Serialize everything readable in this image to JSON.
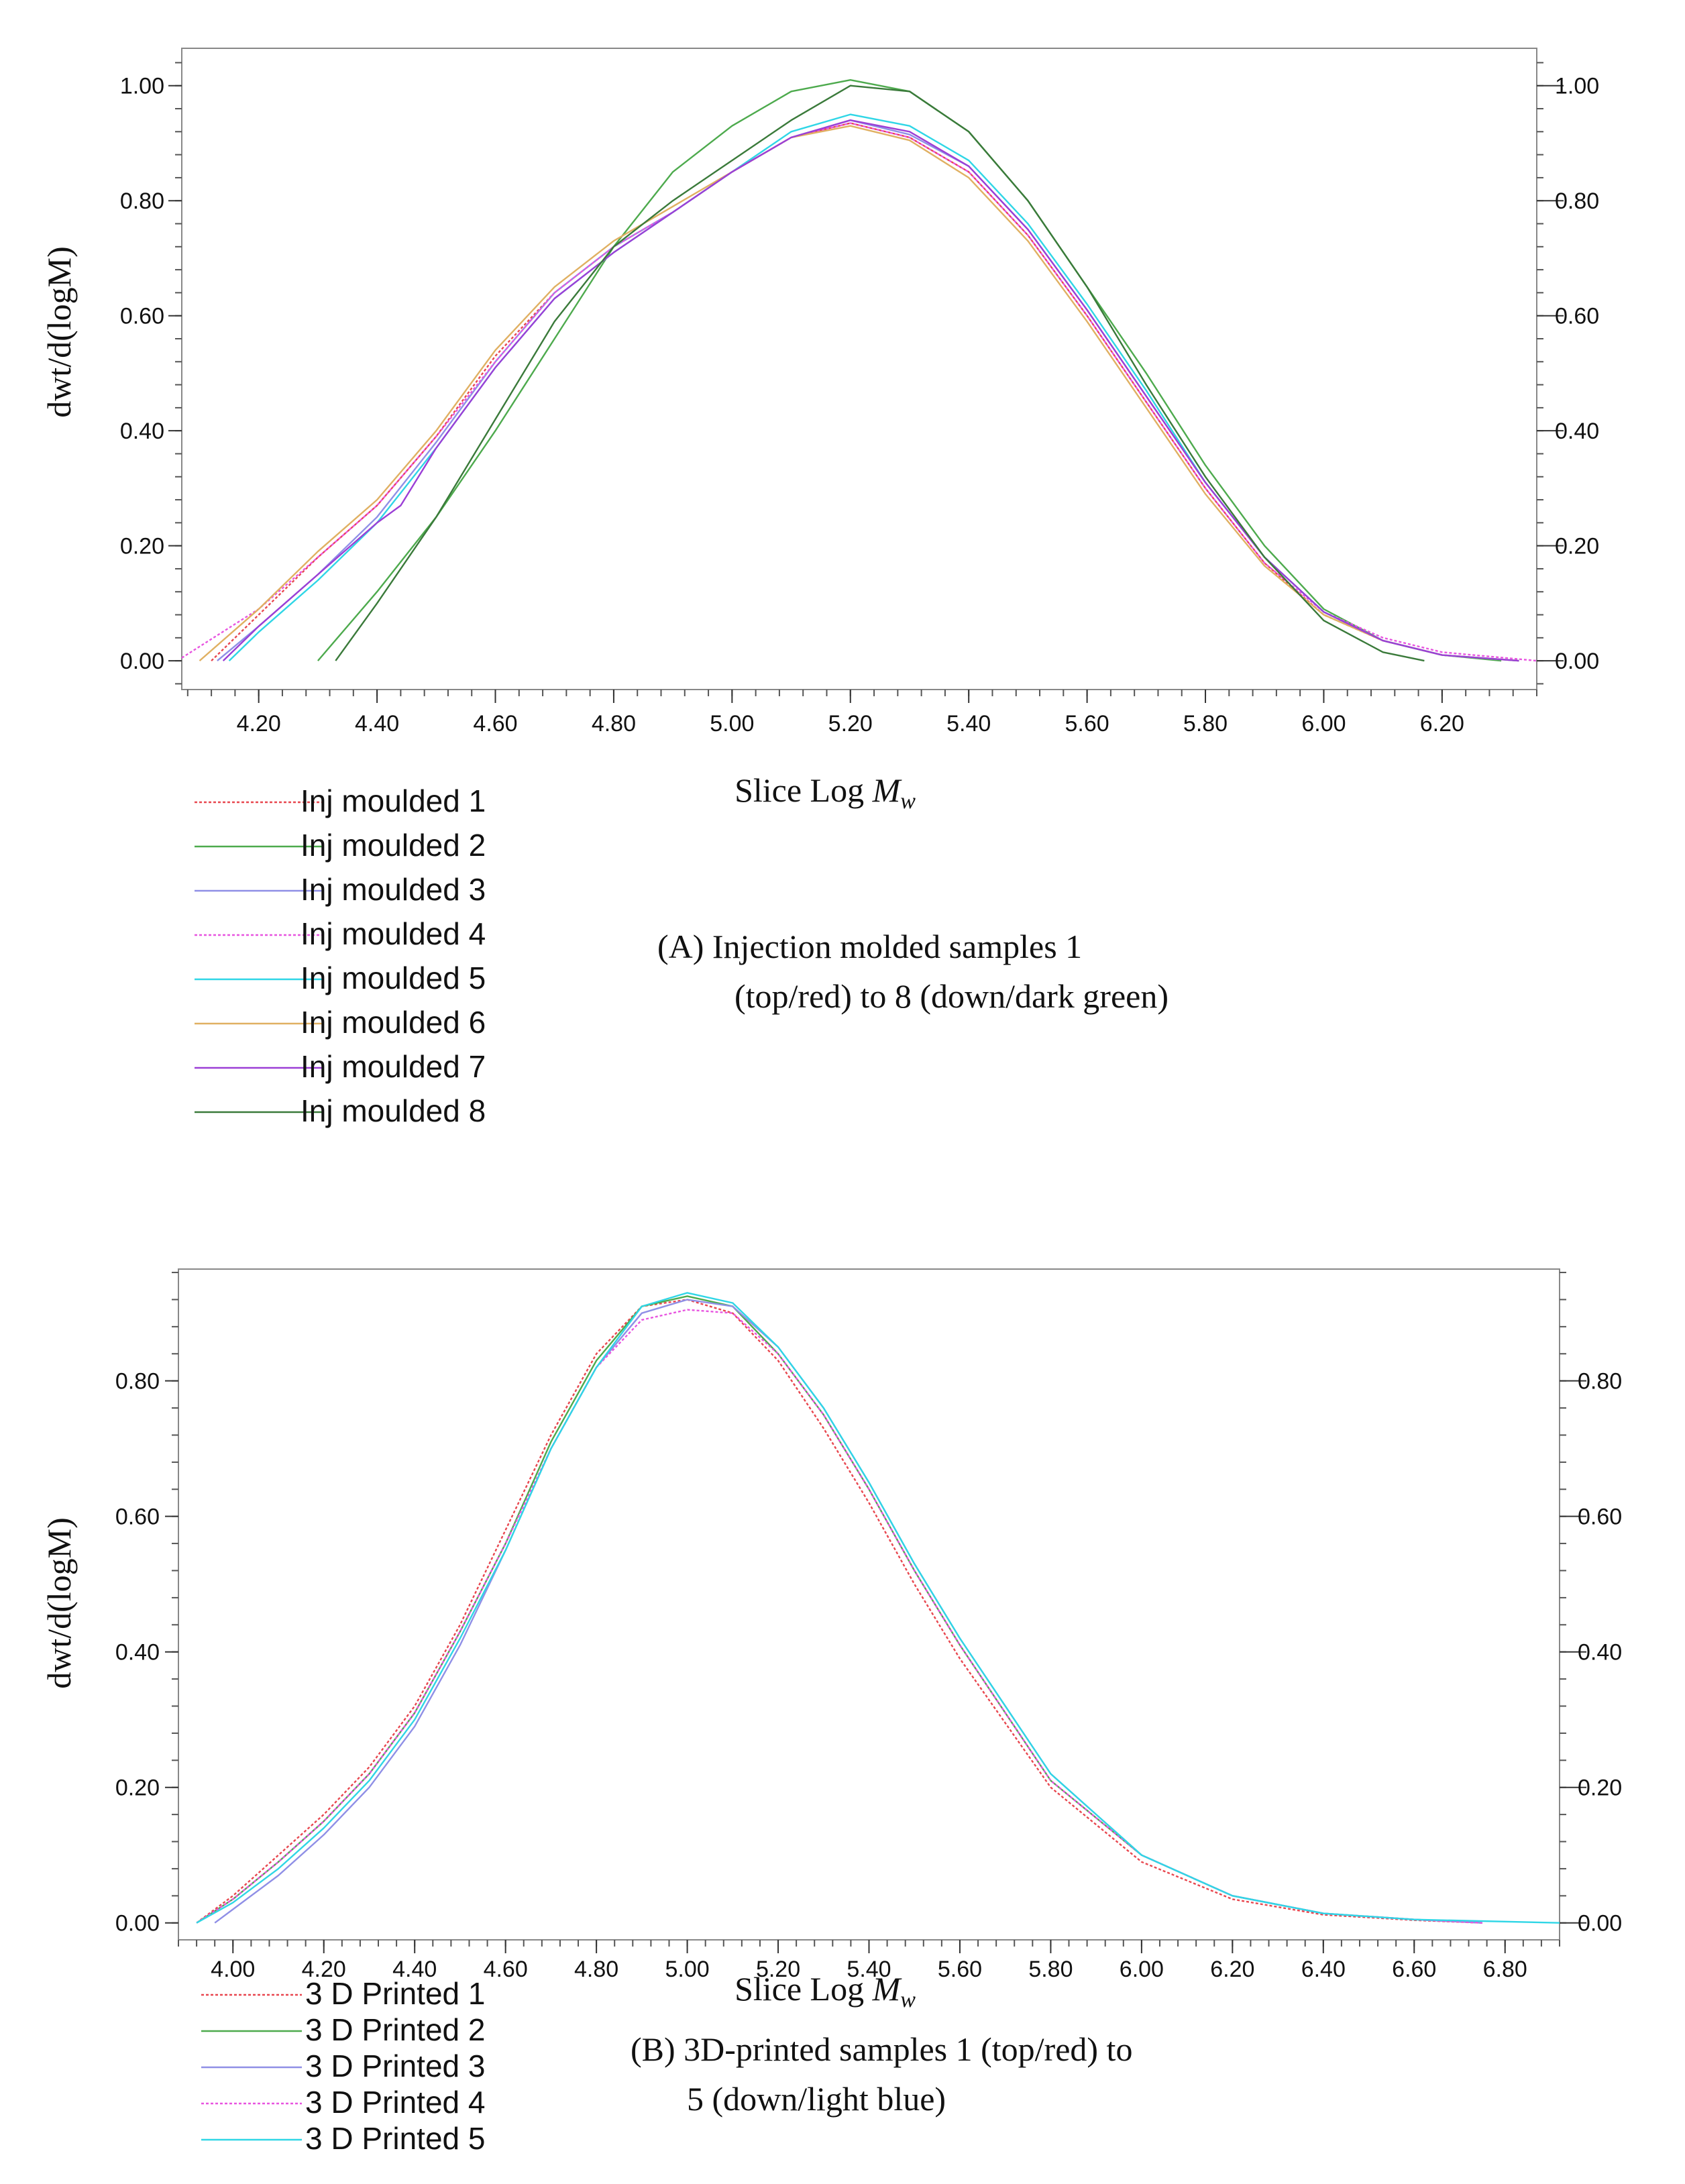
{
  "chart_data": [
    {
      "panel": "A",
      "type": "line",
      "ylabel": "dwt/d(logM)",
      "xlabel": "Slice Log ",
      "xlabel_italic": "M",
      "xlabel_sub": "w",
      "xlim": [
        4.07,
        6.36
      ],
      "ylim": [
        -0.05,
        1.065
      ],
      "xticks": [
        4.2,
        4.4,
        4.6,
        4.8,
        5.0,
        5.2,
        5.4,
        5.6,
        5.8,
        6.0,
        6.2
      ],
      "xtick_labels": [
        "4.20",
        "4.40",
        "4.60",
        "4.80",
        "5.00",
        "5.20",
        "5.40",
        "5.60",
        "5.80",
        "6.00",
        "6.20"
      ],
      "yticks": [
        0,
        0.2,
        0.4,
        0.6,
        0.8,
        1.0
      ],
      "ytick_labels": [
        "0.00",
        "0.20",
        "0.40",
        "0.60",
        "0.80",
        "1.00"
      ],
      "caption_lines": [
        "(A)  Injection molded samples 1",
        "(top/red) to 8 (down/dark green)"
      ],
      "series": [
        {
          "name": "Inj moulded 1",
          "color": "#e8474f",
          "dashed": true,
          "x": [
            4.12,
            4.2,
            4.3,
            4.4,
            4.5,
            4.6,
            4.7,
            4.8,
            4.9,
            5.0,
            5.1,
            5.2,
            5.3,
            5.4,
            5.5,
            5.6,
            5.7,
            5.8,
            5.9,
            6.0,
            6.1,
            6.2,
            6.33
          ],
          "y": [
            0.0,
            0.08,
            0.18,
            0.27,
            0.39,
            0.53,
            0.64,
            0.72,
            0.78,
            0.85,
            0.91,
            0.935,
            0.91,
            0.85,
            0.74,
            0.6,
            0.45,
            0.3,
            0.17,
            0.08,
            0.035,
            0.01,
            0.0
          ]
        },
        {
          "name": "Inj moulded 2",
          "color": "#4daa4d",
          "dashed": false,
          "x": [
            4.3,
            4.4,
            4.5,
            4.6,
            4.7,
            4.8,
            4.9,
            5.0,
            5.1,
            5.2,
            5.3,
            5.4,
            5.5,
            5.6,
            5.7,
            5.8,
            5.9,
            6.0,
            6.1,
            6.2,
            6.3
          ],
          "y": [
            0.0,
            0.12,
            0.25,
            0.4,
            0.56,
            0.72,
            0.85,
            0.93,
            0.99,
            1.01,
            0.99,
            0.92,
            0.8,
            0.65,
            0.5,
            0.34,
            0.2,
            0.09,
            0.035,
            0.01,
            0.0
          ]
        },
        {
          "name": "Inj moulded 3",
          "color": "#8f8fe6",
          "dashed": false,
          "x": [
            4.13,
            4.2,
            4.3,
            4.4,
            4.5,
            4.6,
            4.7,
            4.8,
            4.9,
            5.0,
            5.1,
            5.2,
            5.3,
            5.4,
            5.5,
            5.6,
            5.7,
            5.8,
            5.9,
            6.0,
            6.1,
            6.2,
            6.33
          ],
          "y": [
            0.0,
            0.06,
            0.15,
            0.25,
            0.38,
            0.52,
            0.64,
            0.72,
            0.78,
            0.85,
            0.91,
            0.94,
            0.915,
            0.86,
            0.75,
            0.61,
            0.46,
            0.31,
            0.18,
            0.085,
            0.035,
            0.01,
            0.0
          ]
        },
        {
          "name": "Inj moulded 4",
          "color": "#e855e0",
          "dashed": true,
          "x": [
            4.07,
            4.2,
            4.3,
            4.4,
            4.5,
            4.6,
            4.7,
            4.8,
            4.9,
            5.0,
            5.1,
            5.2,
            5.3,
            5.4,
            5.5,
            5.6,
            5.7,
            5.8,
            5.9,
            6.0,
            6.1,
            6.2,
            6.36
          ],
          "y": [
            0.005,
            0.09,
            0.18,
            0.27,
            0.39,
            0.52,
            0.64,
            0.72,
            0.78,
            0.85,
            0.91,
            0.935,
            0.91,
            0.85,
            0.74,
            0.6,
            0.45,
            0.3,
            0.17,
            0.085,
            0.04,
            0.015,
            0.0
          ]
        },
        {
          "name": "Inj moulded 5",
          "color": "#2fd6e6",
          "dashed": false,
          "x": [
            4.15,
            4.2,
            4.3,
            4.4,
            4.5,
            4.6,
            4.7,
            4.8,
            4.9,
            5.0,
            5.1,
            5.2,
            5.3,
            5.4,
            5.5,
            5.6,
            5.7,
            5.8,
            5.9,
            6.0,
            6.1,
            6.2,
            6.33
          ],
          "y": [
            0.0,
            0.05,
            0.14,
            0.24,
            0.37,
            0.51,
            0.63,
            0.71,
            0.78,
            0.85,
            0.92,
            0.95,
            0.93,
            0.87,
            0.76,
            0.62,
            0.47,
            0.31,
            0.18,
            0.085,
            0.035,
            0.01,
            0.0
          ]
        },
        {
          "name": "Inj moulded 6",
          "color": "#e0b062",
          "dashed": false,
          "x": [
            4.1,
            4.2,
            4.3,
            4.4,
            4.5,
            4.6,
            4.7,
            4.8,
            4.9,
            5.0,
            5.1,
            5.2,
            5.3,
            5.4,
            5.5,
            5.6,
            5.7,
            5.8,
            5.9,
            6.0,
            6.1,
            6.2,
            6.33
          ],
          "y": [
            0.0,
            0.09,
            0.19,
            0.28,
            0.4,
            0.54,
            0.65,
            0.73,
            0.79,
            0.85,
            0.91,
            0.93,
            0.905,
            0.84,
            0.73,
            0.59,
            0.44,
            0.29,
            0.165,
            0.08,
            0.035,
            0.01,
            0.0
          ]
        },
        {
          "name": "Inj moulded 7",
          "color": "#9b3fd6",
          "dashed": false,
          "x": [
            4.14,
            4.2,
            4.3,
            4.4,
            4.44,
            4.5,
            4.6,
            4.7,
            4.8,
            4.9,
            5.0,
            5.1,
            5.2,
            5.3,
            5.4,
            5.5,
            5.6,
            5.7,
            5.8,
            5.9,
            6.0,
            6.1,
            6.2,
            6.33
          ],
          "y": [
            0.0,
            0.06,
            0.15,
            0.24,
            0.27,
            0.37,
            0.51,
            0.63,
            0.71,
            0.78,
            0.85,
            0.91,
            0.94,
            0.92,
            0.86,
            0.75,
            0.61,
            0.46,
            0.31,
            0.18,
            0.085,
            0.035,
            0.01,
            0.0
          ]
        },
        {
          "name": "Inj moulded 8",
          "color": "#3a7a3a",
          "dashed": false,
          "x": [
            4.33,
            4.4,
            4.5,
            4.6,
            4.7,
            4.8,
            4.9,
            5.0,
            5.1,
            5.2,
            5.3,
            5.4,
            5.5,
            5.6,
            5.7,
            5.8,
            5.9,
            6.0,
            6.1,
            6.17
          ],
          "y": [
            0.0,
            0.1,
            0.25,
            0.42,
            0.59,
            0.72,
            0.8,
            0.87,
            0.94,
            1.0,
            0.99,
            0.92,
            0.8,
            0.65,
            0.48,
            0.32,
            0.18,
            0.07,
            0.015,
            0.0
          ]
        }
      ]
    },
    {
      "panel": "B",
      "type": "line",
      "ylabel": "dwt/d(logM)",
      "xlabel": "Slice Log ",
      "xlabel_italic": "M",
      "xlabel_sub": "w",
      "xlim": [
        3.88,
        6.92
      ],
      "ylim": [
        -0.025,
        0.965
      ],
      "xticks": [
        4.0,
        4.2,
        4.4,
        4.6,
        4.8,
        5.0,
        5.2,
        5.4,
        5.6,
        5.8,
        6.0,
        6.2,
        6.4,
        6.6,
        6.8
      ],
      "xtick_labels": [
        "4.00",
        "4.20",
        "4.40",
        "4.60",
        "4.80",
        "5.00",
        "5.20",
        "5.40",
        "5.60",
        "5.80",
        "6.00",
        "6.20",
        "6.40",
        "6.60",
        "6.80"
      ],
      "yticks": [
        0,
        0.2,
        0.4,
        0.6,
        0.8
      ],
      "ytick_labels": [
        "0.00",
        "0.20",
        "0.40",
        "0.60",
        "0.80"
      ],
      "caption_lines": [
        "(B) 3D-printed samples 1 (top/red) to",
        "5 (down/light blue)"
      ],
      "series": [
        {
          "name": "3 D Printed 1",
          "color": "#e8474f",
          "dashed": true,
          "x": [
            3.92,
            4.0,
            4.1,
            4.2,
            4.3,
            4.4,
            4.5,
            4.6,
            4.7,
            4.8,
            4.9,
            5.0,
            5.1,
            5.2,
            5.3,
            5.4,
            5.5,
            5.6,
            5.8,
            6.0,
            6.2,
            6.4,
            6.6,
            6.75
          ],
          "y": [
            0.0,
            0.04,
            0.1,
            0.16,
            0.23,
            0.32,
            0.44,
            0.58,
            0.72,
            0.84,
            0.91,
            0.92,
            0.9,
            0.83,
            0.73,
            0.62,
            0.5,
            0.39,
            0.2,
            0.09,
            0.035,
            0.012,
            0.004,
            0.0
          ]
        },
        {
          "name": "3 D Printed 2",
          "color": "#4daa4d",
          "dashed": false,
          "x": [
            3.92,
            4.0,
            4.1,
            4.2,
            4.3,
            4.4,
            4.5,
            4.6,
            4.7,
            4.8,
            4.9,
            5.0,
            5.1,
            5.2,
            5.3,
            5.4,
            5.5,
            5.6,
            5.8,
            6.0,
            6.2,
            6.4,
            6.6,
            6.75
          ],
          "y": [
            0.0,
            0.035,
            0.09,
            0.15,
            0.22,
            0.31,
            0.43,
            0.56,
            0.71,
            0.83,
            0.91,
            0.925,
            0.91,
            0.84,
            0.75,
            0.64,
            0.52,
            0.41,
            0.21,
            0.1,
            0.04,
            0.014,
            0.005,
            0.0
          ]
        },
        {
          "name": "3 D Printed 3",
          "color": "#8f8fe6",
          "dashed": false,
          "x": [
            3.96,
            4.0,
            4.1,
            4.2,
            4.3,
            4.4,
            4.5,
            4.6,
            4.7,
            4.8,
            4.9,
            5.0,
            5.1,
            5.2,
            5.3,
            5.4,
            5.5,
            5.6,
            5.8,
            6.0,
            6.2,
            6.4,
            6.6,
            6.75
          ],
          "y": [
            0.0,
            0.02,
            0.07,
            0.13,
            0.2,
            0.29,
            0.41,
            0.55,
            0.7,
            0.82,
            0.9,
            0.92,
            0.91,
            0.85,
            0.76,
            0.65,
            0.53,
            0.42,
            0.22,
            0.1,
            0.04,
            0.014,
            0.005,
            0.0
          ]
        },
        {
          "name": "3 D Printed 4",
          "color": "#e855e0",
          "dashed": true,
          "x": [
            3.92,
            4.0,
            4.1,
            4.2,
            4.3,
            4.4,
            4.5,
            4.6,
            4.7,
            4.8,
            4.9,
            5.0,
            5.1,
            5.2,
            5.3,
            5.4,
            5.5,
            5.6,
            5.8,
            6.0,
            6.2,
            6.4,
            6.6,
            6.75
          ],
          "y": [
            0.0,
            0.035,
            0.09,
            0.15,
            0.22,
            0.31,
            0.43,
            0.56,
            0.7,
            0.82,
            0.89,
            0.905,
            0.9,
            0.84,
            0.75,
            0.64,
            0.52,
            0.41,
            0.21,
            0.1,
            0.04,
            0.014,
            0.005,
            0.0
          ]
        },
        {
          "name": "3 D Printed 5",
          "color": "#2fd6e6",
          "dashed": false,
          "x": [
            3.92,
            4.0,
            4.1,
            4.2,
            4.3,
            4.4,
            4.5,
            4.6,
            4.7,
            4.8,
            4.9,
            5.0,
            5.1,
            5.2,
            5.3,
            5.4,
            5.5,
            5.6,
            5.8,
            6.0,
            6.2,
            6.4,
            6.6,
            6.92
          ],
          "y": [
            0.0,
            0.03,
            0.08,
            0.14,
            0.21,
            0.3,
            0.42,
            0.55,
            0.7,
            0.82,
            0.91,
            0.93,
            0.915,
            0.85,
            0.76,
            0.65,
            0.53,
            0.42,
            0.22,
            0.1,
            0.04,
            0.014,
            0.005,
            0.0
          ]
        }
      ]
    }
  ]
}
